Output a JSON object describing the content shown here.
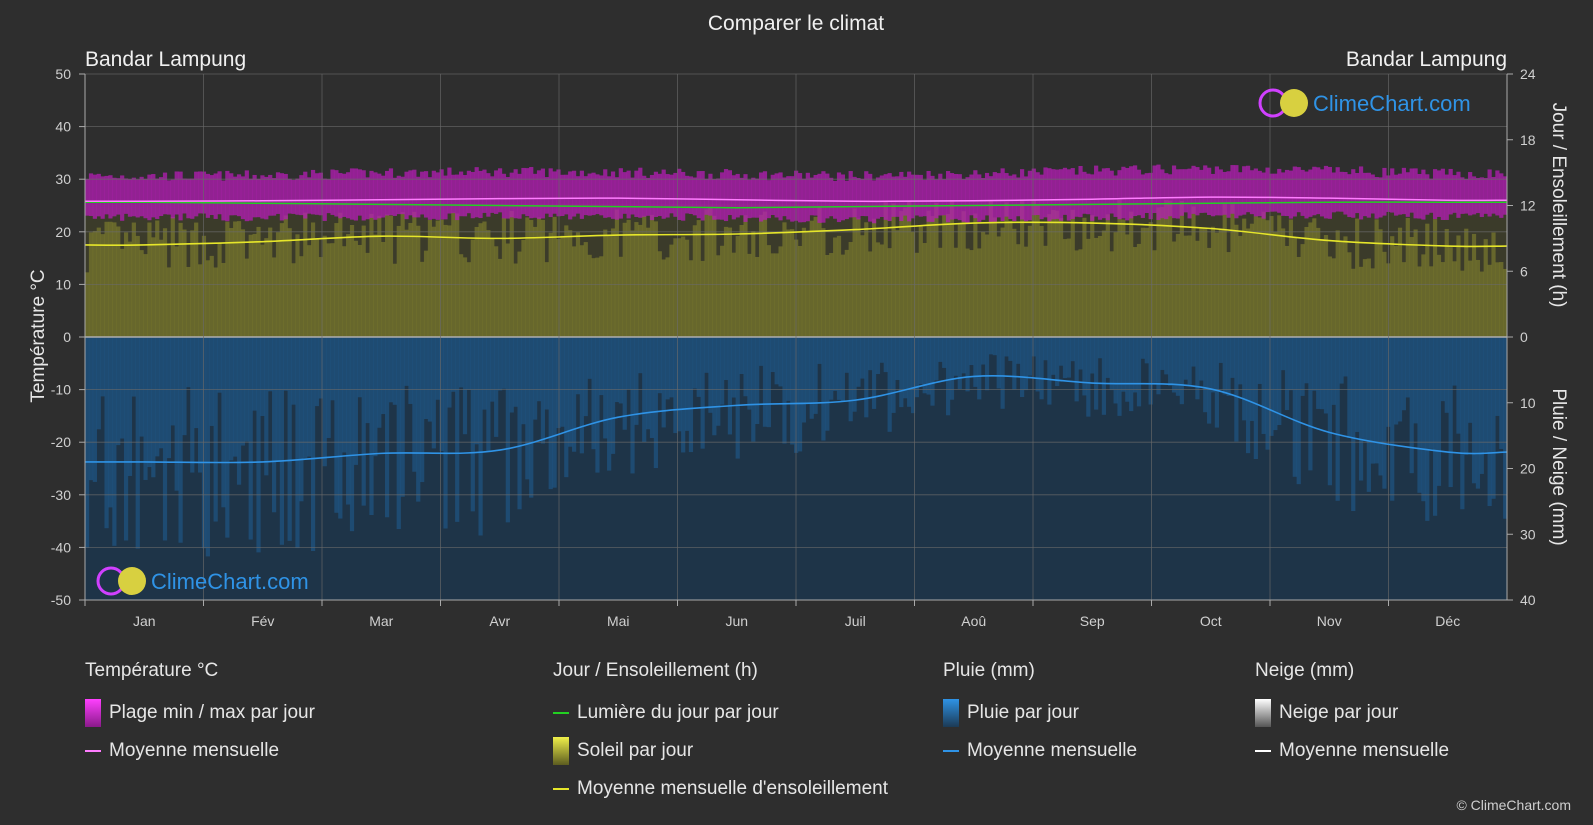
{
  "title": "Comparer le climat",
  "copyright": "© ClimeChart.com",
  "watermark": "ClimeChart.com",
  "colors": {
    "background": "#2e2e2e",
    "temp_band": "#c81ec8",
    "temp_mean": "#ff7dff",
    "daylight": "#22d022",
    "sunshine_band": "#9a9a2e",
    "sunshine_mean": "#e6e62a",
    "rain_band": "#1f6aa8",
    "rain_mean": "#2f93e6",
    "snow_mean": "#ffffff",
    "brand": "#2f93e6"
  },
  "chart_data": {
    "type": "area",
    "title": "Comparer le climat",
    "location_left": "Bandar Lampung",
    "location_right": "Bandar Lampung",
    "months": [
      "Jan",
      "Fév",
      "Mar",
      "Avr",
      "Mai",
      "Jun",
      "Juil",
      "Aoû",
      "Sep",
      "Oct",
      "Nov",
      "Déc"
    ],
    "y_left": {
      "label": "Température °C",
      "min": -50,
      "max": 50,
      "ticks": [
        50,
        40,
        30,
        20,
        10,
        0,
        -10,
        -20,
        -30,
        -40,
        -50
      ]
    },
    "y_right_top": {
      "label": "Jour / Ensoleillement (h)",
      "min": 0,
      "max": 24,
      "ticks": [
        24,
        18,
        12,
        6,
        0
      ]
    },
    "y_right_bottom": {
      "label": "Pluie / Neige (mm)",
      "min": 0,
      "max": 40,
      "ticks": [
        0,
        10,
        20,
        30,
        40
      ]
    },
    "series": [
      {
        "name": "Plage min / max par jour",
        "unit": "°C",
        "min": [
          23.5,
          23.5,
          23.6,
          23.7,
          23.8,
          23.4,
          23.0,
          23.2,
          23.5,
          23.8,
          23.9,
          23.7
        ],
        "max": [
          30.2,
          30.3,
          30.8,
          31.0,
          30.9,
          30.5,
          30.2,
          30.6,
          31.2,
          31.6,
          31.2,
          30.6
        ]
      },
      {
        "name": "Moyenne mensuelle",
        "unit": "°C",
        "values": [
          25.8,
          25.9,
          26.1,
          26.3,
          26.4,
          26.1,
          25.8,
          25.9,
          26.2,
          26.6,
          26.4,
          26.0
        ]
      },
      {
        "name": "Lumière du jour par jour",
        "unit": "h",
        "values": [
          12.3,
          12.2,
          12.1,
          12.0,
          11.9,
          11.8,
          11.9,
          12.0,
          12.1,
          12.2,
          12.3,
          12.3
        ]
      },
      {
        "name": "Moyenne mensuelle d'ensoleillement",
        "unit": "h",
        "values": [
          8.4,
          8.7,
          9.2,
          9.0,
          9.3,
          9.4,
          9.8,
          10.4,
          10.4,
          9.9,
          8.8,
          8.3
        ]
      },
      {
        "name": "Moyenne mensuelle (pluie)",
        "unit": "mm",
        "values": [
          19.0,
          19.0,
          17.7,
          17.2,
          12.2,
          10.4,
          9.6,
          6.0,
          7.0,
          7.9,
          14.5,
          17.5
        ]
      }
    ]
  },
  "legend": {
    "temp": {
      "header": "Température °C",
      "range": "Plage min / max par jour",
      "mean": "Moyenne mensuelle"
    },
    "sun": {
      "header": "Jour / Ensoleillement (h)",
      "daylight": "Lumière du jour par jour",
      "sunshine": "Soleil par jour",
      "sun_mean": "Moyenne mensuelle d'ensoleillement"
    },
    "rain": {
      "header": "Pluie (mm)",
      "daily": "Pluie par jour",
      "mean": "Moyenne mensuelle"
    },
    "snow": {
      "header": "Neige (mm)",
      "daily": "Neige par jour",
      "mean": "Moyenne mensuelle"
    }
  }
}
